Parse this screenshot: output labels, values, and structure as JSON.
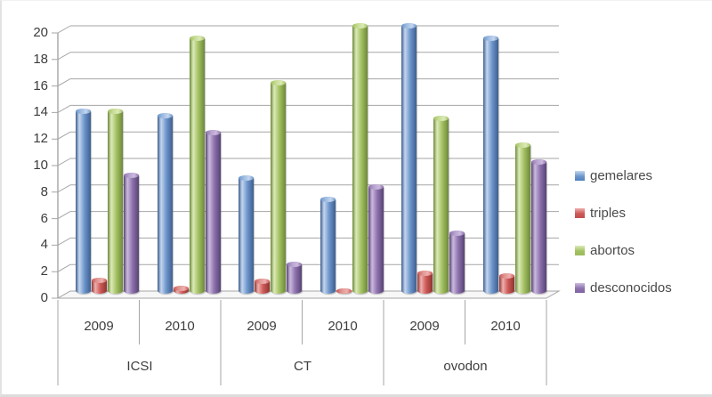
{
  "chart_data": {
    "type": "bar",
    "style": "3d-cylinder",
    "title": "",
    "xlabel": "",
    "ylabel": "",
    "ylim": [
      0,
      20
    ],
    "ytick_step": 2,
    "yticks": [
      "0",
      "2",
      "4",
      "6",
      "8",
      "10",
      "12",
      "14",
      "16",
      "18",
      "20"
    ],
    "grid": true,
    "legend_position": "right",
    "group_labels": [
      "ICSI",
      "CT",
      "ovodon"
    ],
    "categories": [
      "2009",
      "2010",
      "2009",
      "2010",
      "2009",
      "2010"
    ],
    "series": [
      {
        "name": "gemelares",
        "values": [
          13.6,
          13.3,
          8.6,
          7.0,
          20.1,
          19.1
        ],
        "color": "#4f81bd",
        "color_main": "#6d96cc",
        "color_light": "#c4d6ee",
        "color_dark": "#3f5e8f",
        "color_cap": "#9dbce2"
      },
      {
        "name": "triples",
        "values": [
          0.9,
          0.3,
          0.8,
          0.1,
          1.4,
          1.2
        ],
        "color": "#c0504d",
        "color_main": "#cd5856",
        "color_light": "#eeb0ae",
        "color_dark": "#8e3431",
        "color_cap": "#e09693"
      },
      {
        "name": "abortos",
        "values": [
          13.6,
          19.1,
          15.8,
          20.1,
          13.1,
          11.1
        ],
        "color": "#9bbb59",
        "color_main": "#a3c162",
        "color_light": "#dceab8",
        "color_dark": "#6d883a",
        "color_cap": "#c6dc94"
      },
      {
        "name": "desconocidos",
        "values": [
          8.8,
          12.0,
          2.1,
          7.9,
          4.4,
          9.8
        ],
        "color": "#8064a2",
        "color_main": "#8d71ad",
        "color_light": "#cbbade",
        "color_dark": "#574372",
        "color_cap": "#b6a2cf"
      }
    ],
    "axis_color": "#a6a6a6",
    "text_color": "#3d3d3d"
  }
}
